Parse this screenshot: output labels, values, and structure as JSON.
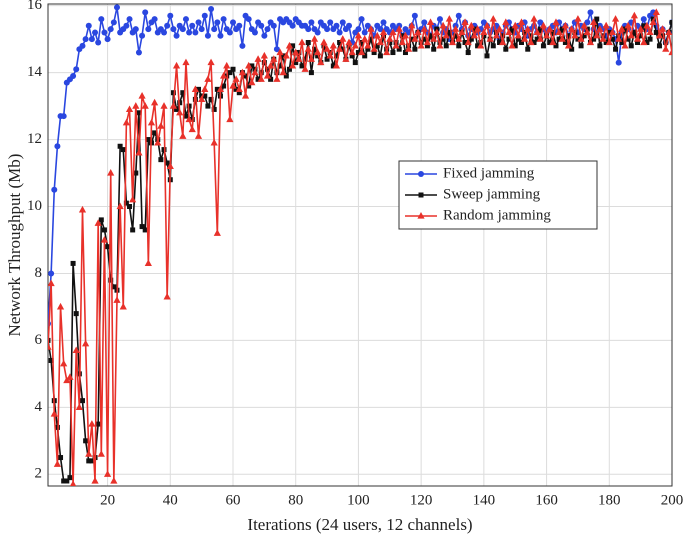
{
  "chart_data": {
    "type": "line",
    "xlabel": "Iterations (24 users, 12 channels)",
    "ylabel": "Network Throughput (Mb)",
    "xlim": [
      1,
      200
    ],
    "ylim": [
      1.65,
      16.05
    ],
    "xticks": [
      20,
      40,
      60,
      80,
      100,
      120,
      140,
      160,
      180,
      200
    ],
    "yticks": [
      2,
      4,
      6,
      8,
      10,
      12,
      14,
      16
    ],
    "grid": true,
    "legend": "center right",
    "x": [
      1,
      2,
      3,
      4,
      5,
      6,
      7,
      8,
      9,
      10,
      11,
      12,
      13,
      14,
      15,
      16,
      17,
      18,
      19,
      20,
      21,
      22,
      23,
      24,
      25,
      26,
      27,
      28,
      29,
      30,
      31,
      32,
      33,
      34,
      35,
      36,
      37,
      38,
      39,
      40,
      41,
      42,
      43,
      44,
      45,
      46,
      47,
      48,
      49,
      50,
      51,
      52,
      53,
      54,
      55,
      56,
      57,
      58,
      59,
      60,
      61,
      62,
      63,
      64,
      65,
      66,
      67,
      68,
      69,
      70,
      71,
      72,
      73,
      74,
      75,
      76,
      77,
      78,
      79,
      80,
      81,
      82,
      83,
      84,
      85,
      86,
      87,
      88,
      89,
      90,
      91,
      92,
      93,
      94,
      95,
      96,
      97,
      98,
      99,
      100,
      101,
      102,
      103,
      104,
      105,
      106,
      107,
      108,
      109,
      110,
      111,
      112,
      113,
      114,
      115,
      116,
      117,
      118,
      119,
      120,
      121,
      122,
      123,
      124,
      125,
      126,
      127,
      128,
      129,
      130,
      131,
      132,
      133,
      134,
      135,
      136,
      137,
      138,
      139,
      140,
      141,
      142,
      143,
      144,
      145,
      146,
      147,
      148,
      149,
      150,
      151,
      152,
      153,
      154,
      155,
      156,
      157,
      158,
      159,
      160,
      161,
      162,
      163,
      164,
      165,
      166,
      167,
      168,
      169,
      170,
      171,
      172,
      173,
      174,
      175,
      176,
      177,
      178,
      179,
      180,
      181,
      182,
      183,
      184,
      185,
      186,
      187,
      188,
      189,
      190,
      191,
      192,
      193,
      194,
      195,
      196,
      197,
      198,
      199,
      200
    ],
    "series": [
      {
        "name": "Fixed jamming",
        "color": "#2a47e0",
        "marker": "circle",
        "values": [
          6.5,
          8.0,
          10.5,
          11.8,
          12.7,
          12.7,
          13.7,
          13.8,
          13.9,
          14.1,
          14.7,
          14.8,
          15.0,
          15.4,
          15.0,
          15.2,
          14.9,
          15.6,
          15.2,
          15.0,
          15.3,
          15.5,
          15.95,
          15.2,
          15.3,
          15.4,
          15.6,
          15.2,
          15.3,
          14.6,
          15.1,
          15.8,
          15.3,
          15.5,
          15.6,
          15.2,
          15.3,
          15.2,
          15.4,
          15.7,
          15.3,
          15.1,
          15.4,
          15.3,
          15.6,
          15.2,
          15.4,
          15.2,
          15.5,
          15.3,
          15.7,
          15.1,
          15.9,
          15.3,
          15.5,
          15.1,
          15.6,
          15.3,
          15.2,
          15.5,
          15.3,
          15.4,
          14.8,
          15.7,
          15.6,
          15.3,
          15.2,
          15.5,
          15.4,
          15.1,
          15.3,
          15.5,
          15.4,
          14.7,
          15.6,
          15.5,
          15.6,
          15.5,
          15.4,
          15.6,
          15.5,
          15.4,
          15.4,
          15.3,
          15.5,
          15.3,
          15.2,
          15.5,
          15.4,
          15.3,
          15.5,
          15.3,
          15.4,
          15.2,
          15.5,
          15.3,
          15.4,
          14.9,
          15.2,
          15.3,
          15.6,
          15.2,
          15.4,
          15.3,
          15.1,
          15.4,
          15.3,
          15.5,
          15.3,
          15.2,
          15.4,
          15.3,
          15.4,
          15.1,
          15.3,
          15.2,
          15.4,
          15.7,
          15.2,
          15.3,
          15.5,
          15.2,
          15.1,
          15.4,
          15.3,
          15.6,
          15.2,
          15.3,
          15.0,
          15.2,
          15.4,
          15.7,
          15.3,
          15.5,
          15.1,
          15.3,
          15.4,
          15.2,
          15.3,
          15.5,
          15.4,
          15.2,
          15.3,
          15.4,
          15.0,
          15.2,
          15.4,
          15.5,
          15.3,
          15.2,
          15.4,
          15.3,
          15.5,
          15.1,
          15.3,
          15.4,
          15.2,
          15.5,
          15.3,
          15.2,
          15.3,
          15.4,
          15.2,
          15.5,
          15.3,
          15.4,
          15.1,
          15.3,
          15.5,
          15.2,
          15.4,
          15.3,
          15.5,
          15.8,
          15.3,
          15.2,
          15.4,
          15.3,
          15.1,
          15.3,
          15.2,
          15.0,
          14.3,
          15.2,
          15.4,
          15.3,
          15.5,
          15.2,
          15.4,
          15.3,
          15.6,
          15.3,
          15.7,
          15.8,
          15.4,
          15.1,
          15.3,
          14.9,
          15.2,
          15.5
        ]
      },
      {
        "name": "Sweep jamming",
        "color": "#111111",
        "marker": "square",
        "values": [
          6.0,
          5.4,
          4.2,
          3.4,
          2.5,
          1.8,
          1.8,
          1.9,
          8.3,
          6.8,
          5.0,
          4.2,
          3.0,
          2.4,
          2.4,
          2.5,
          3.5,
          9.6,
          9.3,
          8.8,
          7.8,
          7.6,
          7.5,
          11.8,
          11.7,
          10.1,
          10.0,
          9.3,
          11.0,
          12.8,
          9.4,
          9.3,
          12.0,
          11.9,
          12.2,
          12.0,
          11.4,
          11.7,
          11.3,
          10.8,
          13.4,
          12.9,
          13.1,
          13.4,
          12.7,
          13.0,
          12.6,
          13.2,
          13.5,
          13.3,
          13.3,
          13.0,
          13.2,
          12.9,
          13.5,
          13.3,
          13.6,
          13.9,
          14.0,
          14.1,
          13.5,
          13.4,
          14.0,
          13.9,
          13.6,
          14.2,
          14.1,
          13.8,
          14.0,
          14.3,
          14.1,
          13.8,
          14.4,
          14.0,
          14.2,
          14.5,
          13.9,
          14.1,
          14.8,
          14.3,
          14.6,
          14.2,
          14.4,
          14.9,
          14.0,
          14.7,
          14.5,
          14.3,
          14.8,
          14.4,
          14.6,
          14.2,
          14.5,
          14.9,
          14.7,
          14.4,
          14.8,
          14.5,
          14.3,
          14.6,
          14.9,
          14.5,
          14.7,
          15.0,
          14.6,
          14.8,
          14.5,
          15.1,
          14.7,
          14.9,
          14.6,
          14.9,
          14.7,
          15.1,
          14.6,
          14.8,
          15.0,
          14.7,
          15.2,
          14.9,
          15.0,
          14.8,
          15.1,
          14.7,
          15.3,
          14.9,
          15.0,
          14.8,
          15.2,
          14.9,
          15.1,
          14.8,
          15.2,
          14.9,
          14.6,
          15.0,
          15.3,
          14.8,
          14.9,
          15.1,
          14.5,
          15.0,
          14.8,
          15.2,
          14.9,
          15.1,
          14.7,
          15.0,
          15.3,
          14.8,
          15.0,
          14.9,
          15.2,
          14.7,
          15.1,
          14.9,
          15.0,
          15.3,
          14.8,
          15.1,
          14.9,
          15.2,
          14.8,
          15.0,
          15.3,
          14.9,
          15.1,
          14.7,
          15.2,
          15.0,
          14.8,
          15.1,
          15.3,
          14.9,
          15.0,
          15.6,
          14.8,
          15.1,
          14.9,
          15.2,
          15.0,
          14.7,
          15.1,
          14.9,
          15.3,
          15.0,
          14.8,
          15.2,
          14.9,
          15.1,
          15.4,
          14.9,
          15.0,
          15.6,
          15.2,
          14.8,
          15.1,
          14.9,
          15.2,
          15.5
        ]
      },
      {
        "name": "Random jamming",
        "color": "#e8312a",
        "marker": "triangle",
        "values": [
          5.8,
          7.7,
          3.8,
          2.3,
          7.0,
          5.3,
          4.8,
          4.9,
          1.7,
          5.7,
          4.0,
          9.9,
          5.9,
          2.6,
          3.5,
          1.8,
          9.5,
          2.6,
          9.0,
          2.0,
          11.0,
          1.8,
          7.2,
          10.0,
          7.0,
          12.5,
          12.9,
          10.2,
          13.0,
          11.6,
          13.3,
          13.0,
          8.3,
          12.5,
          13.1,
          11.9,
          12.4,
          13.0,
          7.3,
          11.2,
          13.0,
          14.2,
          12.8,
          12.1,
          14.3,
          12.6,
          12.3,
          13.5,
          12.1,
          13.2,
          13.5,
          13.8,
          14.3,
          11.9,
          9.2,
          13.5,
          13.9,
          14.2,
          12.6,
          13.6,
          13.8,
          13.5,
          14.0,
          13.3,
          14.2,
          13.7,
          14.0,
          14.4,
          13.8,
          14.5,
          13.9,
          14.2,
          14.4,
          13.8,
          14.6,
          14.0,
          14.5,
          14.8,
          14.2,
          14.6,
          14.4,
          14.9,
          14.1,
          14.7,
          14.4,
          15.0,
          14.6,
          14.3,
          14.9,
          14.7,
          14.5,
          14.8,
          14.2,
          14.7,
          15.0,
          14.4,
          14.9,
          14.6,
          14.8,
          15.1,
          14.6,
          15.0,
          14.8,
          15.3,
          14.7,
          15.1,
          14.9,
          15.2,
          14.6,
          15.0,
          15.2,
          14.8,
          15.3,
          14.9,
          15.1,
          14.7,
          15.4,
          15.0,
          15.2,
          14.8,
          15.3,
          14.9,
          15.5,
          15.0,
          15.2,
          14.8,
          15.4,
          15.1,
          15.6,
          14.9,
          15.3,
          15.0,
          15.2,
          15.5,
          14.9,
          15.4,
          15.1,
          15.3,
          14.8,
          15.2,
          15.4,
          15.0,
          15.6,
          15.1,
          15.3,
          14.9,
          15.5,
          15.2,
          14.8,
          15.4,
          15.1,
          15.5,
          15.0,
          15.3,
          14.9,
          15.6,
          15.2,
          15.0,
          15.4,
          15.1,
          15.3,
          14.9,
          15.5,
          15.2,
          15.0,
          15.4,
          14.8,
          15.3,
          15.1,
          15.6,
          15.0,
          15.4,
          15.2,
          14.9,
          15.5,
          15.1,
          15.3,
          15.0,
          15.4,
          14.9,
          15.2,
          15.6,
          15.0,
          15.3,
          14.8,
          15.4,
          15.1,
          15.7,
          15.0,
          15.3,
          14.9,
          15.4,
          15.2,
          15.5,
          15.8,
          15.1,
          15.3,
          14.7,
          15.2,
          14.6
        ]
      }
    ]
  }
}
